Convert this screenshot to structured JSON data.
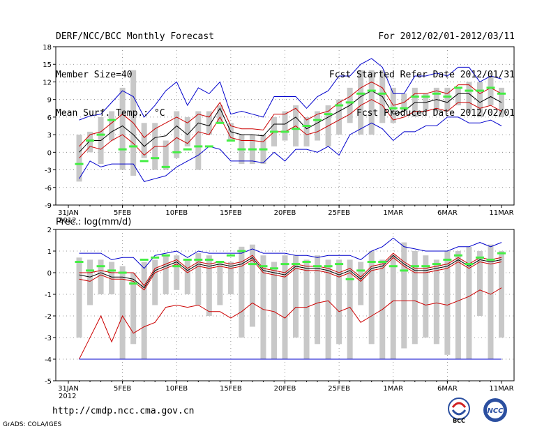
{
  "header": {
    "title": "DERF/NCC/BCC Monthly Forecast",
    "member_size": "Member Size=40",
    "variable": "Mean Surf. Temp.: °C",
    "period": "For 2012/02/01-2012/03/11",
    "started": "Fcst Started Refer Date 2012/01/31",
    "produced": "Fcst Produced Date 2012/02/01"
  },
  "footer": {
    "url": "http://cmdp.ncc.cma.gov.cn",
    "credit": "GrADS: COLA/IGES",
    "logo_left": "BCC",
    "logo_right": "NCC"
  },
  "colors": {
    "bar": "#c8c8c8",
    "hist": "#44ee44",
    "mean": "#000000",
    "spread": "#cc0000",
    "envelope": "#0000cc"
  },
  "chart_data": [
    {
      "type": "line",
      "title": "Mean Surf. Temp.: °C",
      "x": [
        "31JAN",
        "1FEB",
        "2FEB",
        "3FEB",
        "4FEB",
        "5FEB",
        "6FEB",
        "7FEB",
        "8FEB",
        "9FEB",
        "10FEB",
        "11FEB",
        "12FEB",
        "13FEB",
        "14FEB",
        "15FEB",
        "16FEB",
        "17FEB",
        "18FEB",
        "19FEB",
        "20FEB",
        "21FEB",
        "22FEB",
        "23FEB",
        "24FEB",
        "25FEB",
        "26FEB",
        "27FEB",
        "28FEB",
        "29FEB",
        "1MAR",
        "2MAR",
        "3MAR",
        "4MAR",
        "5MAR",
        "6MAR",
        "7MAR",
        "8MAR",
        "9MAR",
        "10MAR",
        "11MAR"
      ],
      "xtick_labels": [
        "31JAN\n2012",
        "5FEB",
        "10FEB",
        "15FEB",
        "20FEB",
        "25FEB",
        "1MAR",
        "6MAR",
        "11MAR"
      ],
      "ylim": [
        -9,
        18
      ],
      "yticks": [
        -9,
        -6,
        -3,
        0,
        3,
        6,
        9,
        12,
        15,
        18
      ],
      "series": [
        {
          "name": "max",
          "color": "#0000cc",
          "values": [
            null,
            5.5,
            6.2,
            6.5,
            8.5,
            10.5,
            9.5,
            6.0,
            8.0,
            10.5,
            12.0,
            8.0,
            11.0,
            10.0,
            12.0,
            6.5,
            7.0,
            6.5,
            6.0,
            9.5,
            9.5,
            9.5,
            7.5,
            9.5,
            10.5,
            13.0,
            13.0,
            15.0,
            16.0,
            14.5,
            10.0,
            10.0,
            13.0,
            13.0,
            13.5,
            13.0,
            14.5,
            14.5,
            12.0,
            13.0,
            12.5
          ]
        },
        {
          "name": "upper",
          "color": "#cc0000",
          "values": [
            null,
            1.0,
            3.0,
            3.5,
            5.0,
            6.5,
            5.0,
            2.5,
            4.0,
            5.0,
            6.0,
            5.0,
            6.5,
            6.0,
            8.5,
            4.5,
            4.0,
            4.0,
            3.8,
            6.5,
            6.5,
            7.5,
            5.5,
            6.5,
            7.0,
            8.5,
            9.5,
            11.0,
            12.0,
            11.0,
            8.0,
            8.5,
            10.0,
            10.0,
            10.5,
            10.0,
            11.5,
            11.5,
            10.0,
            11.0,
            10.0
          ]
        },
        {
          "name": "mean",
          "color": "#000000",
          "values": [
            null,
            0.0,
            2.0,
            2.0,
            3.5,
            4.5,
            3.0,
            1.0,
            2.5,
            2.8,
            4.5,
            3.0,
            5.0,
            4.5,
            7.5,
            3.5,
            3.0,
            3.0,
            2.8,
            4.8,
            4.8,
            6.0,
            4.0,
            5.0,
            6.0,
            7.0,
            8.0,
            9.5,
            10.5,
            9.5,
            6.5,
            7.0,
            8.5,
            8.5,
            9.0,
            8.5,
            10.0,
            10.0,
            8.5,
            9.5,
            8.5
          ]
        },
        {
          "name": "lower",
          "color": "#cc0000",
          "values": [
            null,
            -1.0,
            1.0,
            0.5,
            2.0,
            3.0,
            1.5,
            -0.5,
            1.0,
            1.0,
            2.5,
            1.5,
            3.5,
            3.0,
            6.0,
            2.5,
            2.0,
            2.0,
            1.8,
            3.5,
            3.5,
            4.5,
            3.0,
            3.5,
            4.5,
            5.5,
            6.5,
            8.0,
            9.0,
            8.0,
            5.5,
            6.0,
            7.0,
            7.0,
            7.5,
            7.0,
            8.5,
            8.5,
            7.5,
            8.0,
            7.0
          ]
        },
        {
          "name": "min",
          "color": "#0000cc",
          "values": [
            null,
            -4.5,
            -1.5,
            -2.5,
            -2.0,
            -2.0,
            -2.0,
            -5.0,
            -4.5,
            -4.0,
            -2.5,
            -1.5,
            -0.5,
            1.0,
            0.5,
            -1.5,
            -1.5,
            -1.5,
            -1.8,
            0.0,
            -1.5,
            0.5,
            0.5,
            0.0,
            1.0,
            -0.5,
            3.0,
            4.0,
            5.0,
            4.0,
            2.0,
            3.5,
            3.5,
            4.5,
            4.5,
            6.0,
            6.0,
            5.0,
            5.0,
            5.5,
            4.5
          ]
        }
      ],
      "bars": [
        null,
        [
          -5,
          3
        ],
        [
          0,
          3.5
        ],
        [
          -2,
          6
        ],
        [
          2,
          7
        ],
        [
          -3,
          11
        ],
        [
          -4,
          14
        ],
        [
          -1,
          5
        ],
        [
          -3,
          5
        ],
        [
          -3,
          2
        ],
        [
          -1,
          7
        ],
        [
          1,
          6
        ],
        [
          -3,
          7
        ],
        [
          3,
          7
        ],
        [
          5,
          8
        ],
        [
          2,
          5
        ],
        [
          -2,
          3
        ],
        [
          -2,
          3
        ],
        [
          -2,
          3
        ],
        [
          1,
          6
        ],
        [
          2,
          7
        ],
        [
          1,
          8
        ],
        [
          1,
          6
        ],
        [
          2,
          7
        ],
        [
          1,
          8
        ],
        [
          3,
          9
        ],
        [
          5,
          11
        ],
        [
          3,
          14
        ],
        [
          3,
          14
        ],
        [
          5,
          14
        ],
        [
          5,
          11
        ],
        [
          7,
          10
        ],
        [
          6,
          11
        ],
        [
          7,
          10
        ],
        [
          7,
          11
        ],
        [
          7,
          11
        ],
        [
          8,
          11
        ],
        [
          7,
          12
        ],
        [
          6,
          12
        ],
        [
          8,
          13
        ],
        [
          6,
          11
        ]
      ],
      "hist_marks": [
        null,
        -2.0,
        2.0,
        3.0,
        5.5,
        0.5,
        1.0,
        -1.5,
        -1.0,
        -2.5,
        0.0,
        0.5,
        1.0,
        1.0,
        5.0,
        2.0,
        0.5,
        0.5,
        0.5,
        3.5,
        3.5,
        4.0,
        4.5,
        5.5,
        6.5,
        8.0,
        8.5,
        10.0,
        10.5,
        10.0,
        7.5,
        7.5,
        9.5,
        9.5,
        10.0,
        9.5,
        11.0,
        10.5,
        10.5,
        11.0,
        10.0
      ]
    },
    {
      "type": "line",
      "title": "Prec.: log(mm/d)",
      "x": [
        "31JAN",
        "1FEB",
        "2FEB",
        "3FEB",
        "4FEB",
        "5FEB",
        "6FEB",
        "7FEB",
        "8FEB",
        "9FEB",
        "10FEB",
        "11FEB",
        "12FEB",
        "13FEB",
        "14FEB",
        "15FEB",
        "16FEB",
        "17FEB",
        "18FEB",
        "19FEB",
        "20FEB",
        "21FEB",
        "22FEB",
        "23FEB",
        "24FEB",
        "25FEB",
        "26FEB",
        "27FEB",
        "28FEB",
        "29FEB",
        "1MAR",
        "2MAR",
        "3MAR",
        "4MAR",
        "5MAR",
        "6MAR",
        "7MAR",
        "8MAR",
        "9MAR",
        "10MAR",
        "11MAR"
      ],
      "xtick_labels": [
        "31JAN\n2012",
        "5FEB",
        "10FEB",
        "15FEB",
        "20FEB",
        "25FEB",
        "1MAR",
        "6MAR",
        "11MAR"
      ],
      "ylim": [
        -5,
        2
      ],
      "yticks": [
        -5,
        -4,
        -3,
        -2,
        -1,
        0,
        1,
        2
      ],
      "series": [
        {
          "name": "max",
          "color": "#0000cc",
          "values": [
            null,
            0.9,
            0.9,
            0.9,
            0.6,
            0.7,
            0.7,
            0.2,
            0.8,
            0.9,
            1.0,
            0.7,
            1.0,
            0.9,
            0.9,
            0.9,
            0.9,
            1.1,
            0.9,
            0.9,
            0.9,
            0.8,
            0.8,
            0.7,
            0.8,
            0.8,
            0.8,
            0.6,
            1.0,
            1.2,
            1.6,
            1.2,
            1.1,
            1.0,
            1.0,
            1.0,
            1.2,
            1.2,
            1.4,
            1.2,
            1.4
          ]
        },
        {
          "name": "upper",
          "color": "#cc0000",
          "values": [
            null,
            0.0,
            0.0,
            0.1,
            0.0,
            0.0,
            0.0,
            -0.6,
            0.2,
            0.4,
            0.6,
            0.2,
            0.5,
            0.4,
            0.5,
            0.4,
            0.5,
            0.8,
            0.2,
            0.1,
            0.0,
            0.4,
            0.3,
            0.3,
            0.2,
            0.0,
            0.2,
            -0.2,
            0.3,
            0.4,
            0.9,
            0.5,
            0.2,
            0.2,
            0.3,
            0.4,
            0.7,
            0.4,
            0.7,
            0.6,
            0.7
          ]
        },
        {
          "name": "mean",
          "color": "#000000",
          "values": [
            null,
            -0.1,
            -0.2,
            0.0,
            -0.2,
            -0.2,
            -0.3,
            -0.7,
            0.1,
            0.3,
            0.5,
            0.1,
            0.4,
            0.3,
            0.4,
            0.3,
            0.4,
            0.7,
            0.1,
            0.0,
            -0.1,
            0.3,
            0.2,
            0.2,
            0.1,
            -0.1,
            0.1,
            -0.3,
            0.2,
            0.3,
            0.8,
            0.4,
            0.1,
            0.1,
            0.2,
            0.3,
            0.6,
            0.3,
            0.6,
            0.5,
            0.6
          ]
        },
        {
          "name": "lower",
          "color": "#cc0000",
          "values": [
            null,
            -0.3,
            -0.4,
            -0.1,
            -0.3,
            -0.3,
            -0.4,
            -0.8,
            0.0,
            0.2,
            0.4,
            0.0,
            0.3,
            0.2,
            0.3,
            0.2,
            0.3,
            0.6,
            0.0,
            -0.1,
            -0.2,
            0.2,
            0.1,
            0.1,
            0.0,
            -0.2,
            0.0,
            -0.4,
            0.1,
            0.2,
            0.7,
            0.3,
            0.0,
            0.0,
            0.1,
            0.2,
            0.5,
            0.2,
            0.5,
            0.4,
            0.5
          ]
        },
        {
          "name": "min",
          "color": "#cc0000",
          "values": [
            null,
            -4.0,
            -3.0,
            -2.0,
            -3.2,
            -2.0,
            -2.8,
            -2.5,
            -2.3,
            -1.6,
            -1.5,
            -1.6,
            -1.5,
            -1.8,
            -1.8,
            -2.1,
            -1.8,
            -1.4,
            -1.7,
            -1.8,
            -2.1,
            -1.6,
            -1.6,
            -1.4,
            -1.3,
            -1.8,
            -1.6,
            -2.3,
            -2.0,
            -1.7,
            -1.3,
            -1.3,
            -1.3,
            -1.5,
            -1.4,
            -1.5,
            -1.3,
            -1.1,
            -0.8,
            -1.0,
            -0.7
          ]
        },
        {
          "name": "floor",
          "color": "#0000cc",
          "values": [
            null,
            -4.0,
            -4.0,
            -4.0,
            -4.0,
            -4.0,
            -4.0,
            -4.0,
            -4.0,
            -4.0,
            -4.0,
            -4.0,
            -4.0,
            -4.0,
            -4.0,
            -4.0,
            -4.0,
            -4.0,
            -4.0,
            -4.0,
            -4.0,
            -4.0,
            -4.0,
            -4.0,
            -4.0,
            -4.0,
            -4.0,
            -4.0,
            -4.0,
            -4.0,
            -4.0,
            -4.0,
            -4.0,
            -4.0,
            -4.0,
            -4.0,
            -4.0,
            -4.0,
            -4.0,
            -4.0,
            -4.0
          ]
        }
      ],
      "bars": [
        null,
        [
          -3,
          0.7
        ],
        [
          -1.5,
          0.6
        ],
        [
          -1,
          0.6
        ],
        [
          -1,
          0.5
        ],
        [
          -4,
          0.3
        ],
        [
          -3.3,
          0
        ],
        [
          -4,
          0.5
        ],
        [
          -1.5,
          0.6
        ],
        [
          -1,
          0.8
        ],
        [
          -0.8,
          0.8
        ],
        [
          -1,
          0.6
        ],
        [
          -1.5,
          0.9
        ],
        [
          -2,
          0.8
        ],
        [
          -1.5,
          0.5
        ],
        [
          -1,
          0.5
        ],
        [
          -3,
          1.2
        ],
        [
          -2.5,
          1.3
        ],
        [
          -4,
          0.8
        ],
        [
          -4,
          0.5
        ],
        [
          -4,
          0.8
        ],
        [
          -3,
          0.8
        ],
        [
          -4,
          0.6
        ],
        [
          -3.3,
          0.8
        ],
        [
          -4,
          0.6
        ],
        [
          -3.3,
          0.6
        ],
        [
          -4,
          0.6
        ],
        [
          -1.5,
          0.5
        ],
        [
          -3.3,
          1.0
        ],
        [
          -4,
          0.6
        ],
        [
          -4,
          0.8
        ],
        [
          -3.5,
          1.4
        ],
        [
          -3.3,
          1.0
        ],
        [
          -3,
          0.8
        ],
        [
          -3.3,
          0.6
        ],
        [
          -3.8,
          1.0
        ],
        [
          -4,
          1.0
        ],
        [
          -4,
          1.2
        ],
        [
          -2,
          1.0
        ],
        [
          -4,
          1.3
        ],
        [
          -3,
          1.0
        ]
      ],
      "hist_marks": [
        null,
        0.5,
        0.1,
        0.3,
        0.1,
        0.0,
        -0.5,
        0.6,
        0.7,
        0.8,
        0.3,
        0.6,
        0.6,
        0.6,
        0.5,
        0.8,
        1.0,
        0.4,
        0.3,
        0.2,
        0.4,
        0.4,
        0.5,
        0.3,
        0.3,
        0.4,
        -0.3,
        0.1,
        0.5,
        0.5,
        0.3,
        0.1,
        0.3,
        0.3,
        0.4,
        0.6,
        0.8,
        0.4,
        0.7,
        0.6,
        0.9
      ]
    }
  ]
}
